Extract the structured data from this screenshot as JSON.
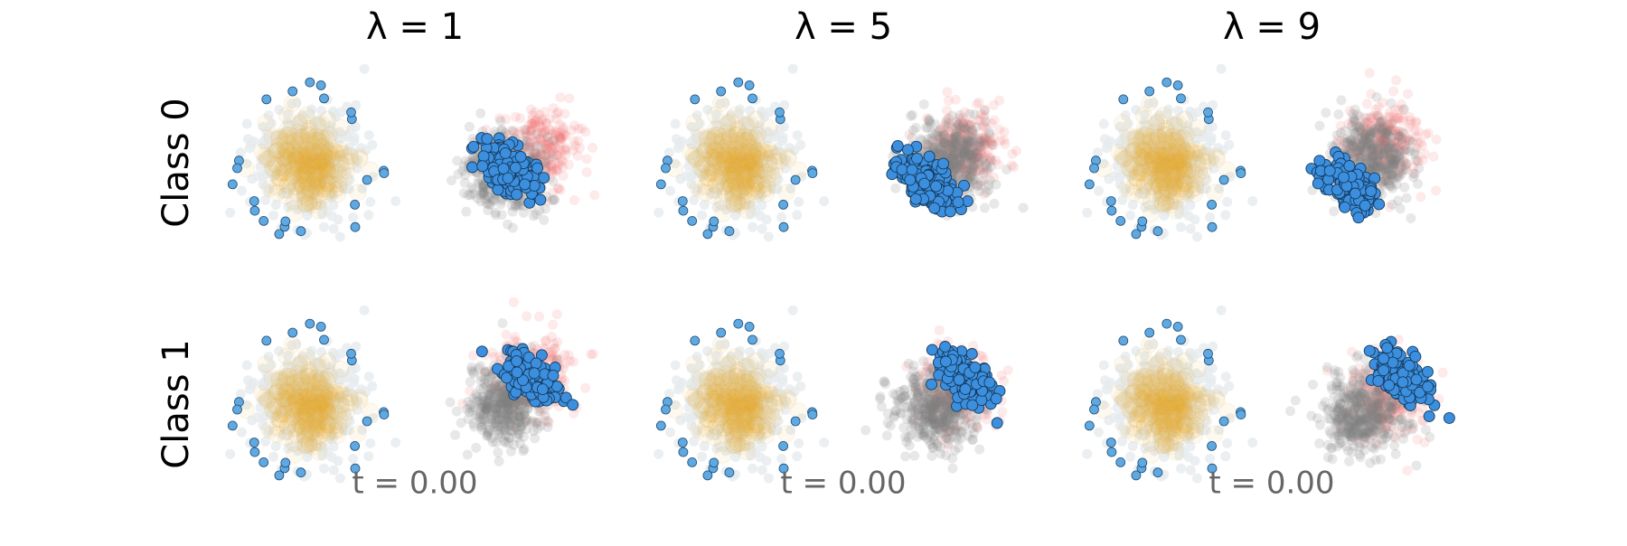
{
  "columns": [
    "λ = 1",
    "λ = 5",
    "λ = 9"
  ],
  "rows": [
    "Class 0",
    "Class 1"
  ],
  "time_labels": [
    "t = 0.00",
    "t = 0.00",
    "t = 0.00"
  ]
}
